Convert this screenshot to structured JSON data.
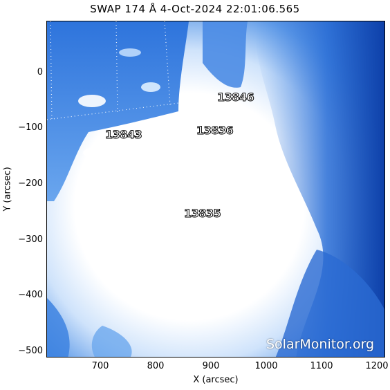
{
  "title": "SWAP 174 Å  4-Oct-2024 22:01:06.565",
  "axes": {
    "xlabel": "X (arcsec)",
    "ylabel": "Y (arcsec)",
    "xticks": [
      "700",
      "800",
      "900",
      "1000",
      "1100",
      "1200"
    ],
    "yticks": [
      "0",
      "−100",
      "−200",
      "−300",
      "−400",
      "−500"
    ]
  },
  "active_regions": [
    {
      "label": "13846"
    },
    {
      "label": "13843"
    },
    {
      "label": "13836"
    },
    {
      "label": "13835"
    }
  ],
  "watermark": "SolarMonitor.org",
  "colors": {
    "corona_dark": "#0a3a9a",
    "corona_mid": "#2f7ae0",
    "corona_light": "#9fc8f5",
    "saturated": "#ffffff"
  }
}
